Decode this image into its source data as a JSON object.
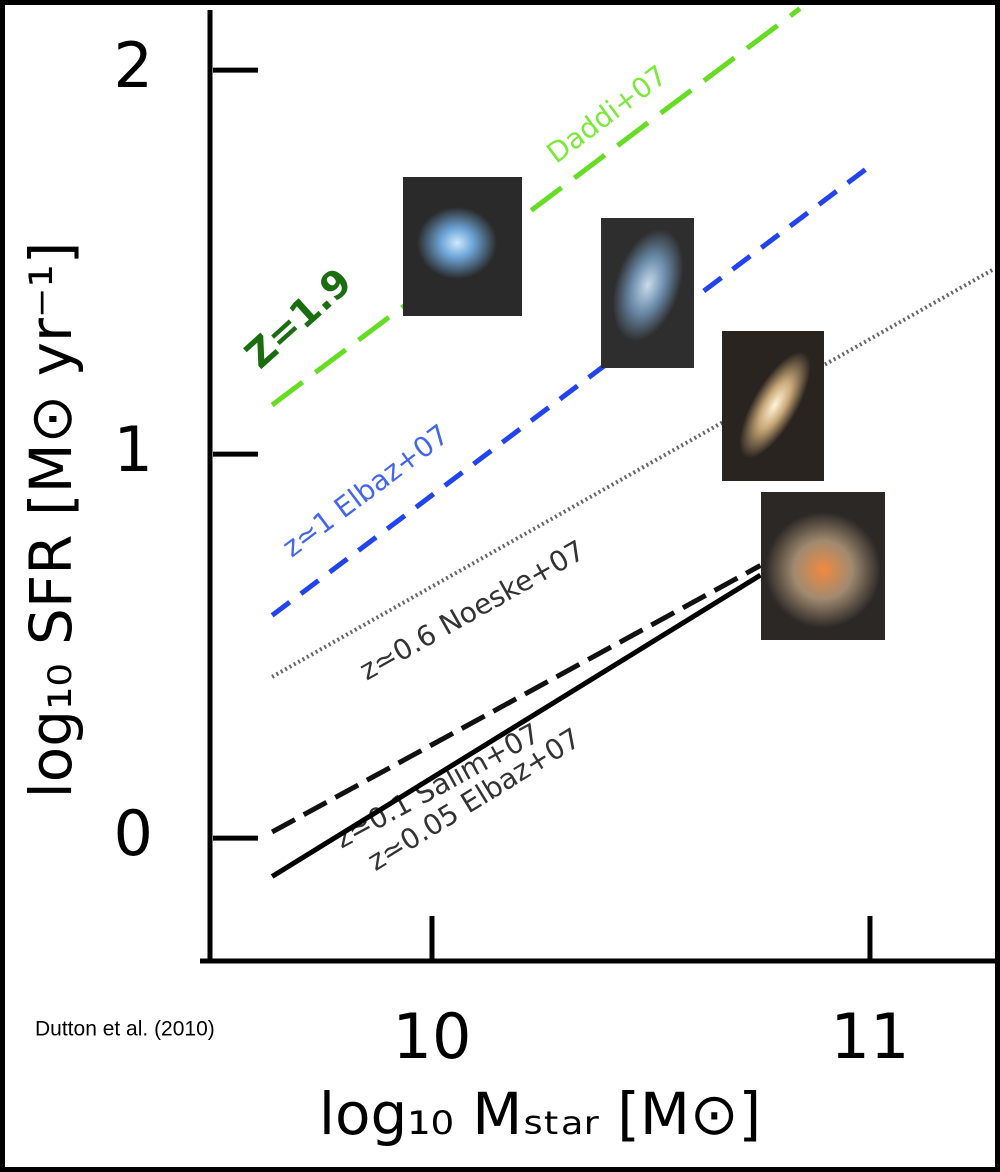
{
  "chart_data": {
    "type": "line",
    "xlabel": "log₁₀ Mₛₜₐᵣ [M⊙]",
    "ylabel": "log₁₀ SFR [M⊙ yr⁻¹]",
    "annotations": [
      "Z=1.9",
      "Dutton et al. (2010)"
    ],
    "xlim": [
      9.5,
      11.28
    ],
    "xticks": [
      10,
      11
    ],
    "ylim": [
      -0.32,
      2.18
    ],
    "yticks": [
      0,
      1,
      2
    ],
    "series": [
      {
        "name": "Daddi+07",
        "color": "#66dd22",
        "dash": "38 16",
        "x": [
          9.635,
          10.84
        ],
        "values": [
          1.128,
          2.16
        ]
      },
      {
        "name": "z≃1 Elbaz+07",
        "color": "#2244ee",
        "dash": "22 14",
        "x": [
          9.635,
          11.0
        ],
        "values": [
          0.58,
          1.75
        ]
      },
      {
        "name": "z≃0.6 Noeske+07",
        "color": "#666666",
        "dash": "2 3",
        "x": [
          9.635,
          11.28
        ],
        "values": [
          0.42,
          1.48
        ]
      },
      {
        "name": "z≃0.1 Salim+07",
        "color": "#111111",
        "dash": "26 10",
        "x": [
          9.635,
          10.75
        ],
        "values": [
          0.016,
          0.71
        ]
      },
      {
        "name": "z≃0.05 Elbaz+07",
        "color": "#000000",
        "dash": "none",
        "x": [
          9.635,
          10.75
        ],
        "values": [
          -0.1,
          0.685
        ]
      }
    ]
  }
}
